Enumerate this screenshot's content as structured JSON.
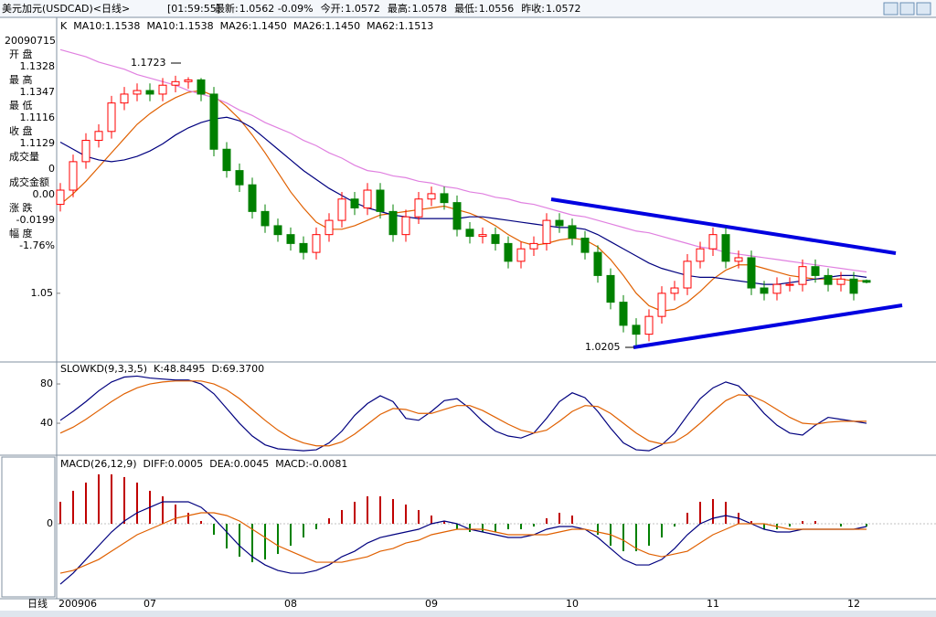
{
  "header": {
    "title": "美元加元(USDCAD)<日线>",
    "time": "[01:59:55]",
    "items": [
      {
        "label": "最新:",
        "value": "1.0562 -0.09%",
        "color": "#008000"
      },
      {
        "label": "今开:",
        "value": "1.0572",
        "color": "#000000"
      },
      {
        "label": "最高:",
        "value": "1.0578",
        "color": "#ff0000"
      },
      {
        "label": "最低:",
        "value": "1.0556",
        "color": "#008000"
      },
      {
        "label": "昨收:",
        "value": "1.0572",
        "color": "#000000"
      }
    ]
  },
  "info_panel": {
    "date": "20090715",
    "rows": [
      {
        "label": "开 盘",
        "value": "1.1328",
        "color": "#606060"
      },
      {
        "label": "最 高",
        "value": "1.1347",
        "color": "#ff0000"
      },
      {
        "label": "最 低",
        "value": "1.1116",
        "color": "#008000"
      },
      {
        "label": "收 盘",
        "value": "1.1129",
        "color": "#008000"
      },
      {
        "label": "成交量",
        "value": "0",
        "color": "#000000"
      },
      {
        "label": "成交金额",
        "value": "0.00",
        "color": "#000000"
      },
      {
        "label": "涨 跌",
        "value": "-0.0199",
        "color": "#008000"
      },
      {
        "label": "幅 度",
        "value": "-1.76%",
        "color": "#008000"
      }
    ]
  },
  "footer": {
    "period": "日线"
  },
  "chart_data": [
    {
      "type": "candlestick",
      "up_color": "#ff0000",
      "down_color": "#008000",
      "categories": [
        "200906",
        null,
        null,
        null,
        null,
        null,
        null,
        "07",
        null,
        null,
        null,
        null,
        null,
        null,
        null,
        null,
        null,
        null,
        "08",
        null,
        null,
        null,
        null,
        null,
        null,
        null,
        null,
        null,
        null,
        "09",
        null,
        null,
        null,
        null,
        null,
        null,
        null,
        null,
        null,
        null,
        "10",
        null,
        null,
        null,
        null,
        null,
        null,
        null,
        null,
        null,
        null,
        "11",
        null,
        null,
        null,
        null,
        null,
        null,
        null,
        null,
        null,
        null,
        "12",
        null
      ],
      "open": [
        1.1,
        1.108,
        1.124,
        1.136,
        1.141,
        1.157,
        1.162,
        1.164,
        1.162,
        1.167,
        1.169,
        1.17,
        1.162,
        1.131,
        1.119,
        1.111,
        1.096,
        1.088,
        1.083,
        1.078,
        1.073,
        1.083,
        1.091,
        1.103,
        1.098,
        1.108,
        1.096,
        1.083,
        1.093,
        1.103,
        1.106,
        1.101,
        1.086,
        1.082,
        1.083,
        1.078,
        1.068,
        1.075,
        1.078,
        1.091,
        1.088,
        1.081,
        1.073,
        1.06,
        1.045,
        1.032,
        1.027,
        1.037,
        1.05,
        1.053,
        1.068,
        1.075,
        1.083,
        1.068,
        1.07,
        1.053,
        1.05,
        1.055,
        1.055,
        1.065,
        1.06,
        1.055,
        1.058,
        1.0572
      ],
      "high": [
        1.112,
        1.128,
        1.14,
        1.145,
        1.161,
        1.166,
        1.168,
        1.168,
        1.171,
        1.1723,
        1.1715,
        1.171,
        1.166,
        1.135,
        1.123,
        1.115,
        1.1,
        1.092,
        1.087,
        1.082,
        1.087,
        1.095,
        1.107,
        1.107,
        1.112,
        1.112,
        1.1,
        1.097,
        1.107,
        1.11,
        1.11,
        1.105,
        1.09,
        1.087,
        1.087,
        1.082,
        1.079,
        1.082,
        1.095,
        1.095,
        1.092,
        1.085,
        1.077,
        1.064,
        1.049,
        1.036,
        1.041,
        1.054,
        1.057,
        1.072,
        1.079,
        1.087,
        1.087,
        1.074,
        1.074,
        1.057,
        1.059,
        1.059,
        1.069,
        1.069,
        1.064,
        1.062,
        1.062,
        1.0578
      ],
      "low": [
        1.096,
        1.104,
        1.12,
        1.132,
        1.137,
        1.153,
        1.158,
        1.158,
        1.158,
        1.163,
        1.165,
        1.158,
        1.127,
        1.115,
        1.107,
        1.092,
        1.084,
        1.079,
        1.074,
        1.069,
        1.069,
        1.079,
        1.087,
        1.094,
        1.094,
        1.092,
        1.079,
        1.079,
        1.089,
        1.099,
        1.097,
        1.082,
        1.078,
        1.078,
        1.074,
        1.064,
        1.064,
        1.071,
        1.074,
        1.084,
        1.077,
        1.069,
        1.056,
        1.041,
        1.028,
        1.0205,
        1.023,
        1.033,
        1.046,
        1.049,
        1.064,
        1.071,
        1.064,
        1.064,
        1.049,
        1.046,
        1.046,
        1.051,
        1.051,
        1.056,
        1.051,
        1.051,
        1.046,
        1.0556
      ],
      "close": [
        1.108,
        1.124,
        1.136,
        1.141,
        1.157,
        1.162,
        1.164,
        1.162,
        1.167,
        1.169,
        1.17,
        1.162,
        1.131,
        1.119,
        1.111,
        1.096,
        1.088,
        1.083,
        1.078,
        1.073,
        1.083,
        1.091,
        1.103,
        1.098,
        1.108,
        1.096,
        1.083,
        1.093,
        1.103,
        1.106,
        1.101,
        1.086,
        1.082,
        1.083,
        1.078,
        1.068,
        1.075,
        1.078,
        1.091,
        1.088,
        1.081,
        1.073,
        1.06,
        1.045,
        1.032,
        1.027,
        1.037,
        1.05,
        1.053,
        1.068,
        1.075,
        1.083,
        1.068,
        1.07,
        1.053,
        1.05,
        1.055,
        1.055,
        1.065,
        1.06,
        1.055,
        1.058,
        1.05,
        1.0562
      ],
      "legend_extra": [
        "K",
        "MA10:1.1538",
        "MA26:1.1450"
      ],
      "series": [
        {
          "name": "MA10:1.1538",
          "color": "#e06000",
          "values": [
            1.1,
            1.106,
            1.113,
            1.121,
            1.129,
            1.137,
            1.145,
            1.151,
            1.156,
            1.16,
            1.163,
            1.164,
            1.161,
            1.155,
            1.148,
            1.139,
            1.129,
            1.118,
            1.107,
            1.098,
            1.09,
            1.086,
            1.086,
            1.088,
            1.091,
            1.094,
            1.095,
            1.096,
            1.097,
            1.098,
            1.099,
            1.097,
            1.095,
            1.092,
            1.088,
            1.083,
            1.079,
            1.077,
            1.078,
            1.08,
            1.081,
            1.08,
            1.076,
            1.069,
            1.06,
            1.05,
            1.043,
            1.04,
            1.041,
            1.045,
            1.051,
            1.058,
            1.063,
            1.066,
            1.066,
            1.064,
            1.062,
            1.06,
            1.059,
            1.058,
            1.058,
            1.058,
            1.057,
            1.057
          ]
        },
        {
          "name": "MA26:1.1450",
          "color": "#00007f",
          "values": [
            1.135,
            1.131,
            1.127,
            1.125,
            1.124,
            1.125,
            1.127,
            1.13,
            1.134,
            1.139,
            1.143,
            1.146,
            1.148,
            1.149,
            1.147,
            1.143,
            1.137,
            1.131,
            1.125,
            1.119,
            1.114,
            1.109,
            1.105,
            1.101,
            1.098,
            1.096,
            1.094,
            1.093,
            1.092,
            1.092,
            1.092,
            1.092,
            1.093,
            1.093,
            1.092,
            1.091,
            1.09,
            1.089,
            1.088,
            1.087,
            1.087,
            1.086,
            1.083,
            1.079,
            1.075,
            1.071,
            1.067,
            1.064,
            1.062,
            1.06,
            1.059,
            1.059,
            1.058,
            1.057,
            1.056,
            1.055,
            1.055,
            1.056,
            1.057,
            1.058,
            1.059,
            1.06,
            1.06,
            1.059
          ]
        },
        {
          "name": "MA62:1.1513",
          "color": "#e080e0",
          "values": [
            1.187,
            1.185,
            1.183,
            1.18,
            1.178,
            1.176,
            1.173,
            1.171,
            1.169,
            1.167,
            1.164,
            1.162,
            1.16,
            1.157,
            1.153,
            1.15,
            1.146,
            1.143,
            1.14,
            1.136,
            1.133,
            1.129,
            1.126,
            1.122,
            1.119,
            1.118,
            1.116,
            1.115,
            1.113,
            1.112,
            1.11,
            1.109,
            1.107,
            1.106,
            1.104,
            1.103,
            1.101,
            1.1,
            1.098,
            1.096,
            1.094,
            1.093,
            1.091,
            1.089,
            1.087,
            1.085,
            1.084,
            1.082,
            1.08,
            1.078,
            1.076,
            1.075,
            1.073,
            1.072,
            1.071,
            1.07,
            1.069,
            1.068,
            1.067,
            1.066,
            1.065,
            1.064,
            1.063,
            1.062
          ]
        }
      ],
      "annotations": [
        "1.1723",
        "1.0205"
      ],
      "ylim": [
        1.0119,
        1.2036
      ],
      "yticks": [
        1.05
      ]
    },
    {
      "type": "line",
      "title": "SLOWKD(9,3,3,5)",
      "series": [
        {
          "name": "K:48.8495",
          "color": "#00007f",
          "values": [
            43,
            52,
            62,
            73,
            82,
            87,
            88,
            86,
            85,
            84,
            84,
            80,
            70,
            55,
            40,
            27,
            18,
            14,
            13,
            12,
            13,
            20,
            32,
            48,
            60,
            68,
            62,
            45,
            43,
            52,
            63,
            65,
            55,
            42,
            32,
            27,
            25,
            30,
            45,
            62,
            71,
            66,
            52,
            35,
            20,
            13,
            12,
            18,
            30,
            48,
            65,
            76,
            82,
            78,
            65,
            50,
            38,
            30,
            28,
            38,
            46,
            44,
            42,
            40
          ]
        },
        {
          "name": "D:69.3700",
          "color": "#e06000",
          "values": [
            30,
            36,
            44,
            53,
            62,
            70,
            76,
            80,
            82,
            83,
            83,
            83,
            80,
            74,
            65,
            54,
            43,
            33,
            25,
            20,
            17,
            17,
            21,
            29,
            39,
            49,
            55,
            54,
            50,
            50,
            54,
            58,
            58,
            53,
            46,
            39,
            33,
            30,
            33,
            42,
            52,
            58,
            57,
            50,
            40,
            30,
            22,
            19,
            21,
            29,
            40,
            52,
            63,
            69,
            68,
            62,
            54,
            46,
            40,
            39,
            41,
            42,
            42,
            42
          ]
        }
      ],
      "ylim": [
        8.4,
        100.5
      ],
      "yticks": [
        40,
        80
      ]
    },
    {
      "type": "combo",
      "title": "MACD(26,12,9)",
      "series": [
        {
          "name": "DIFF:0.0005",
          "type": "line",
          "color": "#00007f",
          "values": [
            -0.022,
            -0.018,
            -0.013,
            -0.008,
            -0.003,
            0.001,
            0.004,
            0.006,
            0.008,
            0.008,
            0.008,
            0.006,
            0.002,
            -0.003,
            -0.008,
            -0.012,
            -0.015,
            -0.017,
            -0.018,
            -0.018,
            -0.017,
            -0.015,
            -0.012,
            -0.01,
            -0.007,
            -0.005,
            -0.004,
            -0.003,
            -0.002,
            0.0,
            0.001,
            0.0,
            -0.002,
            -0.003,
            -0.004,
            -0.005,
            -0.005,
            -0.004,
            -0.002,
            -0.001,
            -0.001,
            -0.002,
            -0.005,
            -0.009,
            -0.013,
            -0.015,
            -0.015,
            -0.013,
            -0.009,
            -0.004,
            0.0,
            0.002,
            0.003,
            0.002,
            0.0,
            -0.002,
            -0.003,
            -0.003,
            -0.002,
            -0.002,
            -0.002,
            -0.002,
            -0.002,
            -0.001
          ]
        },
        {
          "name": "DEA:0.0045",
          "type": "line",
          "color": "#e06000",
          "values": [
            -0.018,
            -0.017,
            -0.015,
            -0.013,
            -0.01,
            -0.007,
            -0.004,
            -0.002,
            0.0,
            0.002,
            0.003,
            0.004,
            0.004,
            0.003,
            0.001,
            -0.002,
            -0.005,
            -0.008,
            -0.01,
            -0.012,
            -0.014,
            -0.014,
            -0.014,
            -0.013,
            -0.012,
            -0.01,
            -0.009,
            -0.007,
            -0.006,
            -0.004,
            -0.003,
            -0.002,
            -0.002,
            -0.002,
            -0.003,
            -0.004,
            -0.004,
            -0.004,
            -0.004,
            -0.003,
            -0.002,
            -0.002,
            -0.003,
            -0.004,
            -0.006,
            -0.009,
            -0.011,
            -0.012,
            -0.011,
            -0.01,
            -0.007,
            -0.004,
            -0.002,
            0.0,
            0.0,
            0.0,
            -0.001,
            -0.002,
            -0.002,
            -0.002,
            -0.002,
            -0.002,
            -0.002,
            -0.002
          ]
        },
        {
          "name": "MACD:-0.0081",
          "type": "bar",
          "up_color": "#c00000",
          "down_color": "#008000",
          "values": [
            0.008,
            0.012,
            0.015,
            0.018,
            0.018,
            0.017,
            0.015,
            0.012,
            0.01,
            0.007,
            0.004,
            0.001,
            -0.004,
            -0.009,
            -0.012,
            -0.014,
            -0.013,
            -0.011,
            -0.008,
            -0.005,
            -0.002,
            0.002,
            0.005,
            0.008,
            0.01,
            0.01,
            0.009,
            0.007,
            0.005,
            0.003,
            0.001,
            -0.002,
            -0.003,
            -0.003,
            -0.003,
            -0.002,
            -0.002,
            -0.001,
            0.002,
            0.004,
            0.003,
            0.0,
            -0.004,
            -0.008,
            -0.01,
            -0.01,
            -0.008,
            -0.005,
            -0.001,
            0.004,
            0.008,
            0.009,
            0.008,
            0.004,
            0.001,
            -0.002,
            -0.002,
            -0.001,
            0.001,
            0.001,
            0.0,
            -0.001,
            0.0,
            -0.001
          ]
        }
      ],
      "ylim": [
        -0.0273,
        0.0243
      ],
      "yticks": [
        0
      ]
    }
  ]
}
